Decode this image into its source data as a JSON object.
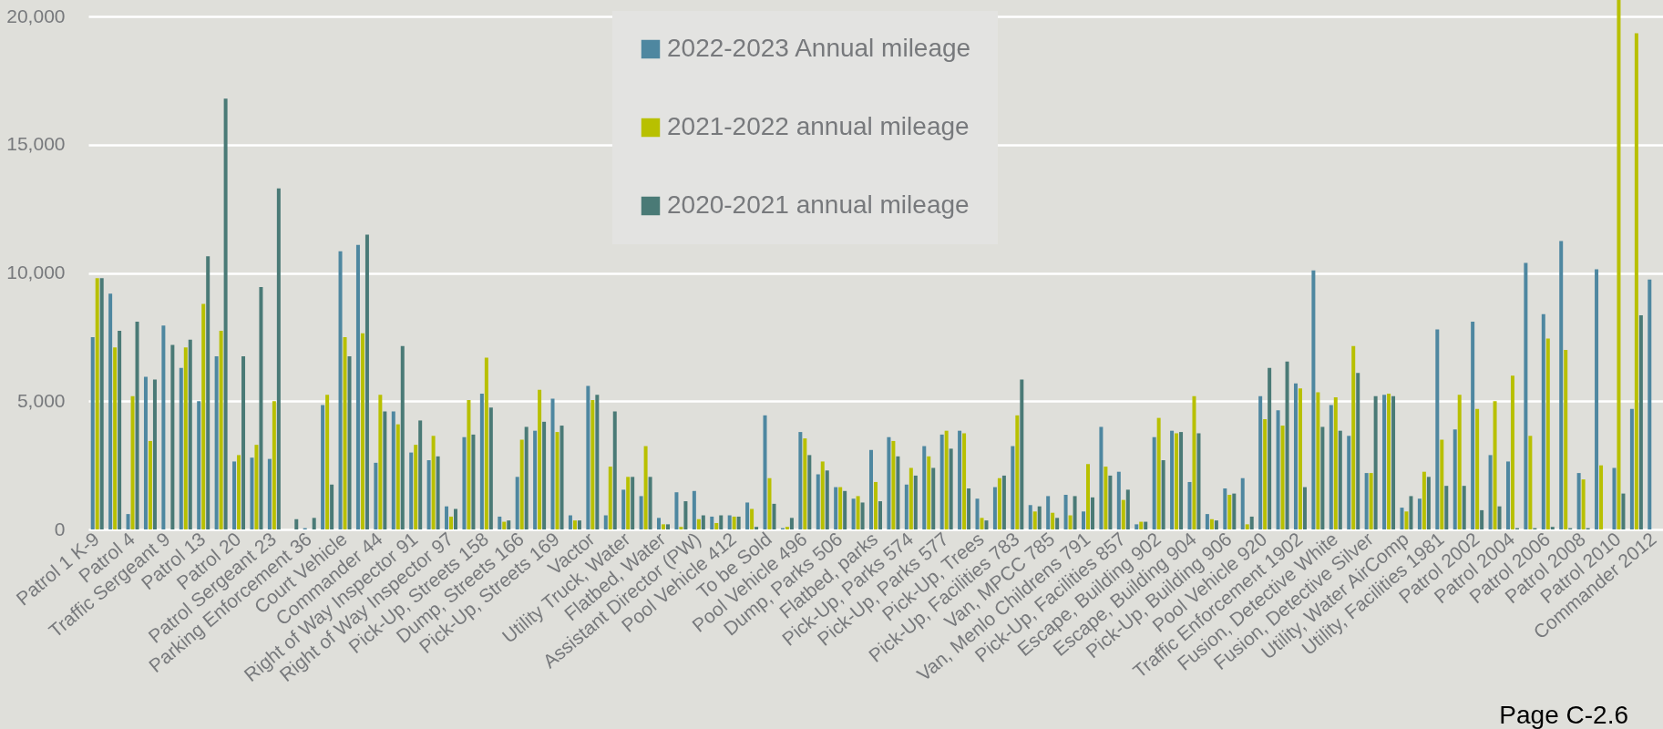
{
  "chart_data": {
    "type": "bar",
    "categories": [
      "Patrol 1 K-9",
      null,
      "Patrol 4",
      null,
      "Traffic Sergeant 9",
      null,
      "Patrol 13",
      null,
      "Patrol 20",
      null,
      "Patrol Sergeant 23",
      null,
      "Parking Enforcement 36",
      null,
      "Court Vehicle",
      null,
      "Commander 44",
      null,
      "Right of Way Inspector 91",
      null,
      "Right of Way Inspector 97",
      null,
      "Pick-Up, Streets 158",
      null,
      "Dump, Streets 166",
      null,
      "Pick-Up, Streets 169",
      null,
      "Vactor",
      null,
      "Utility Truck, Water",
      null,
      "Flatbed, Water",
      null,
      "Assistant Director (PW)",
      null,
      "Pool Vehicle 412",
      null,
      "To be Sold",
      null,
      "Pool Vehicle 496",
      null,
      "Dump, Parks 506",
      null,
      "Flatbed, parks",
      null,
      "Pick-Up, Parks 574",
      null,
      "Pick-Up, Parks 577",
      null,
      "Pick-Up, Trees",
      null,
      "Pick-Up, Facilities 783",
      null,
      "Van, MPCC 785",
      null,
      "Van, Menlo Childrens 791",
      null,
      "Pick-Up, Facilities 857",
      null,
      "Escape, Building 902",
      null,
      "Escape, Building 904",
      null,
      "Pick-Up, Building 906",
      null,
      "Pool Vehicle 920",
      null,
      "Traffic Enforcement 1902",
      null,
      "Fusion, Detective White",
      null,
      "Fusion, Detective Silver",
      null,
      "Utility, Water AirComp",
      null,
      "Utility, Facilities 1981",
      null,
      "Patrol 2002",
      null,
      "Patrol 2004",
      null,
      "Patrol 2006",
      null,
      "Patrol 2008",
      null,
      "Patrol 2010",
      null,
      "Commander 2012"
    ],
    "series": [
      {
        "name": "2022-2023 Annual mileage",
        "color": "#4e87a0",
        "values": [
          7500,
          9200,
          600,
          5950,
          7950,
          6300,
          5000,
          6750,
          2650,
          2800,
          2750,
          0,
          50,
          4850,
          10850,
          11100,
          2600,
          4600,
          3000,
          2700,
          900,
          3600,
          5300,
          500,
          2050,
          3850,
          5100,
          550,
          5600,
          550,
          1550,
          1300,
          450,
          1450,
          1500,
          500,
          550,
          1050,
          4450,
          50,
          3800,
          2150,
          1650,
          1200,
          3100,
          3600,
          1750,
          3250,
          3700,
          3850,
          1200,
          1650,
          3250,
          950,
          1300,
          1350,
          700,
          4000,
          2250,
          200,
          3600,
          3850,
          1850,
          600,
          1600,
          2000,
          5200,
          4650,
          5700,
          10100,
          4850,
          3650,
          2200,
          5250,
          850,
          1200,
          7800,
          3900,
          8100,
          2900,
          2650,
          10400,
          8400,
          11250,
          2200,
          10150,
          2400,
          4700,
          9750
        ]
      },
      {
        "name": "2021-2022 annual mileage",
        "color": "#b8c000",
        "values": [
          9800,
          7100,
          5200,
          3450,
          0,
          7100,
          8800,
          7750,
          2900,
          3300,
          5000,
          0,
          0,
          5250,
          7500,
          7650,
          5250,
          4100,
          3300,
          3650,
          500,
          5050,
          6700,
          300,
          3500,
          5450,
          3800,
          350,
          5050,
          2450,
          2050,
          3250,
          200,
          100,
          400,
          250,
          500,
          800,
          2000,
          100,
          3550,
          2650,
          1650,
          1300,
          1850,
          3450,
          2400,
          2850,
          3850,
          3750,
          450,
          2000,
          4450,
          700,
          650,
          550,
          2550,
          2450,
          1150,
          300,
          4350,
          3750,
          5200,
          400,
          1350,
          200,
          4300,
          4050,
          5500,
          5350,
          5150,
          7150,
          2200,
          5300,
          700,
          2250,
          3500,
          5250,
          4700,
          5000,
          6000,
          3650,
          7450,
          7000,
          1950,
          2500,
          20650,
          19350,
          null
        ]
      },
      {
        "name": "2020-2021 annual mileage",
        "color": "#4a7a76",
        "values": [
          9800,
          7750,
          8100,
          5850,
          7200,
          7400,
          10650,
          16800,
          6750,
          9450,
          13300,
          400,
          450,
          1750,
          6750,
          11500,
          4600,
          7150,
          4250,
          2850,
          800,
          3700,
          4750,
          350,
          4000,
          4200,
          4050,
          350,
          5250,
          4600,
          2050,
          2050,
          200,
          1100,
          550,
          550,
          500,
          100,
          1000,
          450,
          2900,
          2300,
          1500,
          1050,
          1100,
          2850,
          2100,
          2400,
          3150,
          1600,
          350,
          2100,
          5850,
          900,
          450,
          1300,
          1250,
          2100,
          1550,
          300,
          2700,
          3800,
          3750,
          350,
          1400,
          500,
          6300,
          6550,
          1650,
          4000,
          3850,
          6100,
          5200,
          5200,
          1300,
          2050,
          1700,
          1700,
          750,
          900,
          50,
          50,
          100,
          50,
          50,
          0,
          1400,
          8350,
          null
        ]
      }
    ],
    "ylim": [
      0,
      20650
    ],
    "yticks": [
      0,
      {
        "value": 5000,
        "label": "5,000"
      },
      {
        "value": 10000,
        "label": "10,000"
      },
      {
        "value": 15000,
        "label": "15,000"
      },
      {
        "value": 20000,
        "label": "20,000"
      }
    ],
    "grid": "y",
    "legend": "top",
    "annotations": [
      "Page C-2.6"
    ]
  }
}
